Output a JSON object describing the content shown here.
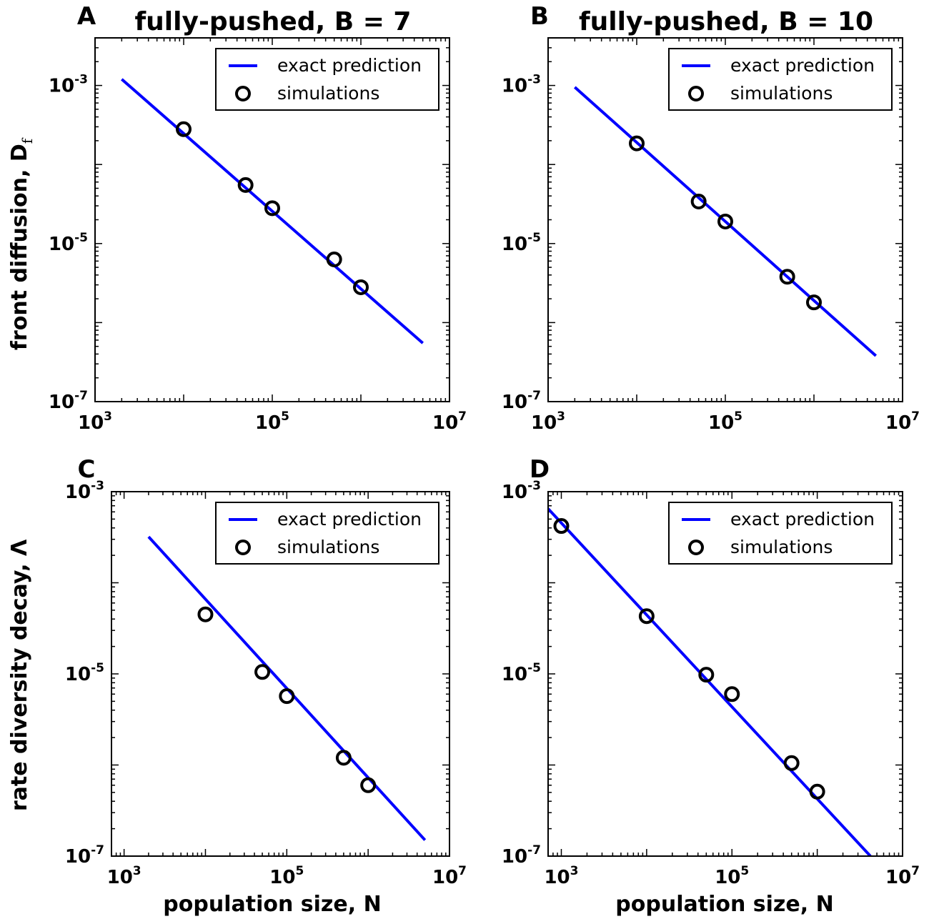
{
  "figure": {
    "row_ylabels": [
      "front diffusion, D",
      "rate diversity decay, Λ"
    ],
    "row_ylabel_subscripts": [
      "f",
      ""
    ],
    "col_xlabel": "population size, N"
  },
  "chart_data": [
    {
      "type": "line",
      "panel_letter": "A",
      "title": "fully-pushed, B = 7",
      "xlabel": "",
      "ylabel": "front diffusion, D",
      "x_scale": "log",
      "y_scale": "log",
      "xlim": [
        1000,
        10000000
      ],
      "ylim": [
        1e-07,
        0.004
      ],
      "x_ticks": [
        {
          "v": 1000,
          "base": "10",
          "exp": "3"
        },
        {
          "v": 100000,
          "base": "10",
          "exp": "5"
        },
        {
          "v": 10000000,
          "base": "10",
          "exp": "7"
        }
      ],
      "y_ticks": [
        {
          "v": 1e-07,
          "base": "10",
          "exp": "-7"
        },
        {
          "v": 1e-05,
          "base": "10",
          "exp": "-5"
        },
        {
          "v": 0.001,
          "base": "10",
          "exp": "-3"
        }
      ],
      "legend": {
        "position": "top-right",
        "entries": [
          "exact prediction",
          "simulations"
        ]
      },
      "series": [
        {
          "name": "exact prediction",
          "kind": "line",
          "color": "#0000ff",
          "x": [
            2000,
            5000000
          ],
          "y": [
            0.0012,
            5.5e-07
          ]
        },
        {
          "name": "simulations",
          "kind": "scatter",
          "marker": "circle-open",
          "color": "#000000",
          "x": [
            10000,
            50000,
            100000,
            500000,
            1000000
          ],
          "y": [
            0.00028,
            5.5e-05,
            2.8e-05,
            6.3e-06,
            2.8e-06
          ]
        }
      ]
    },
    {
      "type": "line",
      "panel_letter": "B",
      "title": "fully-pushed, B = 10",
      "xlabel": "",
      "ylabel": "",
      "x_scale": "log",
      "y_scale": "log",
      "xlim": [
        1000,
        10000000
      ],
      "ylim": [
        1e-07,
        0.004
      ],
      "x_ticks": [
        {
          "v": 1000,
          "base": "10",
          "exp": "3"
        },
        {
          "v": 100000,
          "base": "10",
          "exp": "5"
        },
        {
          "v": 10000000,
          "base": "10",
          "exp": "7"
        }
      ],
      "y_ticks": [
        {
          "v": 1e-07,
          "base": "10",
          "exp": "-7"
        },
        {
          "v": 1e-05,
          "base": "10",
          "exp": "-5"
        },
        {
          "v": 0.001,
          "base": "10",
          "exp": "-3"
        }
      ],
      "legend": {
        "position": "top-right",
        "entries": [
          "exact prediction",
          "simulations"
        ]
      },
      "series": [
        {
          "name": "exact prediction",
          "kind": "line",
          "color": "#0000ff",
          "x": [
            2000,
            5000000
          ],
          "y": [
            0.00095,
            3.8e-07
          ]
        },
        {
          "name": "simulations",
          "kind": "scatter",
          "marker": "circle-open",
          "color": "#000000",
          "x": [
            10000,
            50000,
            100000,
            500000,
            1000000
          ],
          "y": [
            0.000185,
            3.4e-05,
            1.9e-05,
            3.8e-06,
            1.8e-06
          ]
        }
      ]
    },
    {
      "type": "line",
      "panel_letter": "C",
      "title": "",
      "xlabel": "population size, N",
      "ylabel": "rate diversity decay, Λ",
      "x_scale": "log",
      "y_scale": "log",
      "xlim": [
        700,
        10000000
      ],
      "ylim": [
        1e-07,
        0.001
      ],
      "x_ticks": [
        {
          "v": 1000,
          "base": "10",
          "exp": "3"
        },
        {
          "v": 100000,
          "base": "10",
          "exp": "5"
        },
        {
          "v": 10000000,
          "base": "10",
          "exp": "7"
        }
      ],
      "y_ticks": [
        {
          "v": 1e-07,
          "base": "10",
          "exp": "-7"
        },
        {
          "v": 1e-05,
          "base": "10",
          "exp": "-5"
        },
        {
          "v": 0.001,
          "base": "10",
          "exp": "-3"
        }
      ],
      "legend": {
        "position": "top-right",
        "entries": [
          "exact prediction",
          "simulations"
        ]
      },
      "series": [
        {
          "name": "exact prediction",
          "kind": "line",
          "color": "#0000ff",
          "x": [
            2000,
            5000000
          ],
          "y": [
            0.00032,
            1.5e-07
          ]
        },
        {
          "name": "simulations",
          "kind": "scatter",
          "marker": "circle-open",
          "color": "#000000",
          "x": [
            10000,
            50000,
            100000,
            500000,
            1000000
          ],
          "y": [
            4.5e-05,
            1.05e-05,
            5.7e-06,
            1.2e-06,
            6e-07
          ]
        }
      ]
    },
    {
      "type": "line",
      "panel_letter": "D",
      "title": "",
      "xlabel": "population size, N",
      "ylabel": "",
      "x_scale": "log",
      "y_scale": "log",
      "xlim": [
        700,
        10000000
      ],
      "ylim": [
        1e-07,
        0.001
      ],
      "x_ticks": [
        {
          "v": 1000,
          "base": "10",
          "exp": "3"
        },
        {
          "v": 100000,
          "base": "10",
          "exp": "5"
        },
        {
          "v": 10000000,
          "base": "10",
          "exp": "7"
        }
      ],
      "y_ticks": [
        {
          "v": 1e-07,
          "base": "10",
          "exp": "-7"
        },
        {
          "v": 1e-05,
          "base": "10",
          "exp": "-5"
        },
        {
          "v": 0.001,
          "base": "10",
          "exp": "-3"
        }
      ],
      "legend": {
        "position": "top-right",
        "entries": [
          "exact prediction",
          "simulations"
        ]
      },
      "series": [
        {
          "name": "exact prediction",
          "kind": "line",
          "color": "#0000ff",
          "x": [
            700,
            4200000
          ],
          "y": [
            0.00065,
            1e-07
          ]
        },
        {
          "name": "simulations",
          "kind": "scatter",
          "marker": "circle-open",
          "color": "#000000",
          "x": [
            1000,
            10000,
            50000,
            100000,
            500000,
            1000000
          ],
          "y": [
            0.00042,
            4.3e-05,
            9.8e-06,
            6e-06,
            1.05e-06,
            5.1e-07
          ]
        }
      ]
    }
  ]
}
